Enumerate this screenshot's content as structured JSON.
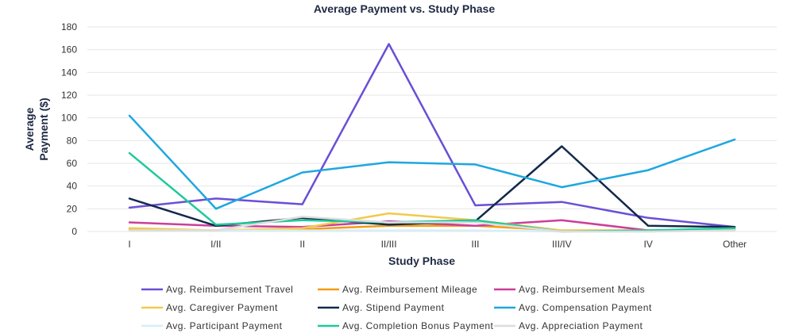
{
  "chart_data": {
    "type": "line",
    "title": "Average Payment vs. Study Phase",
    "xlabel": "Study Phase",
    "ylabel_lines": [
      "Average",
      "Payment ($)"
    ],
    "categories": [
      "I",
      "I/II",
      "II",
      "II/III",
      "III",
      "III/IV",
      "IV",
      "Other"
    ],
    "ylim": [
      0,
      180
    ],
    "yticks": [
      0,
      20,
      40,
      60,
      80,
      100,
      120,
      140,
      160,
      180
    ],
    "grid": true,
    "legend_position": "bottom",
    "series": [
      {
        "name": "Avg. Reimbursement Travel",
        "color": "#6a4fd6",
        "values": [
          21,
          29,
          24,
          165,
          23,
          26,
          12,
          4
        ]
      },
      {
        "name": "Avg. Reimbursement Mileage",
        "color": "#f39c12",
        "values": [
          2,
          1,
          2,
          5,
          5,
          1,
          1,
          2
        ]
      },
      {
        "name": "Avg. Reimbursement Meals",
        "color": "#cc3e9a",
        "values": [
          8,
          5,
          4,
          9,
          5,
          10,
          1,
          2
        ]
      },
      {
        "name": "Avg. Caregiver Payment",
        "color": "#f2c94c",
        "values": [
          3,
          1,
          3,
          16,
          10,
          1,
          1,
          2
        ]
      },
      {
        "name": "Avg. Stipend Payment",
        "color": "#13294b",
        "values": [
          29,
          5,
          12,
          6,
          9,
          75,
          5,
          4
        ]
      },
      {
        "name": "Avg. Compensation Payment",
        "color": "#1ea7e0",
        "values": [
          102,
          20,
          52,
          61,
          59,
          39,
          54,
          81
        ]
      },
      {
        "name": "Avg. Participant Payment",
        "color": "#d6eef8",
        "values": [
          1,
          1,
          1,
          1,
          1,
          0,
          0,
          1
        ]
      },
      {
        "name": "Avg. Completion Bonus Payment",
        "color": "#1fc99a",
        "values": [
          69,
          6,
          10,
          8,
          10,
          0,
          1,
          3
        ]
      },
      {
        "name": "Avg. Appreciation Payment",
        "color": "#dddddd",
        "values": [
          1,
          1,
          13,
          8,
          8,
          0,
          0,
          1
        ]
      }
    ]
  }
}
